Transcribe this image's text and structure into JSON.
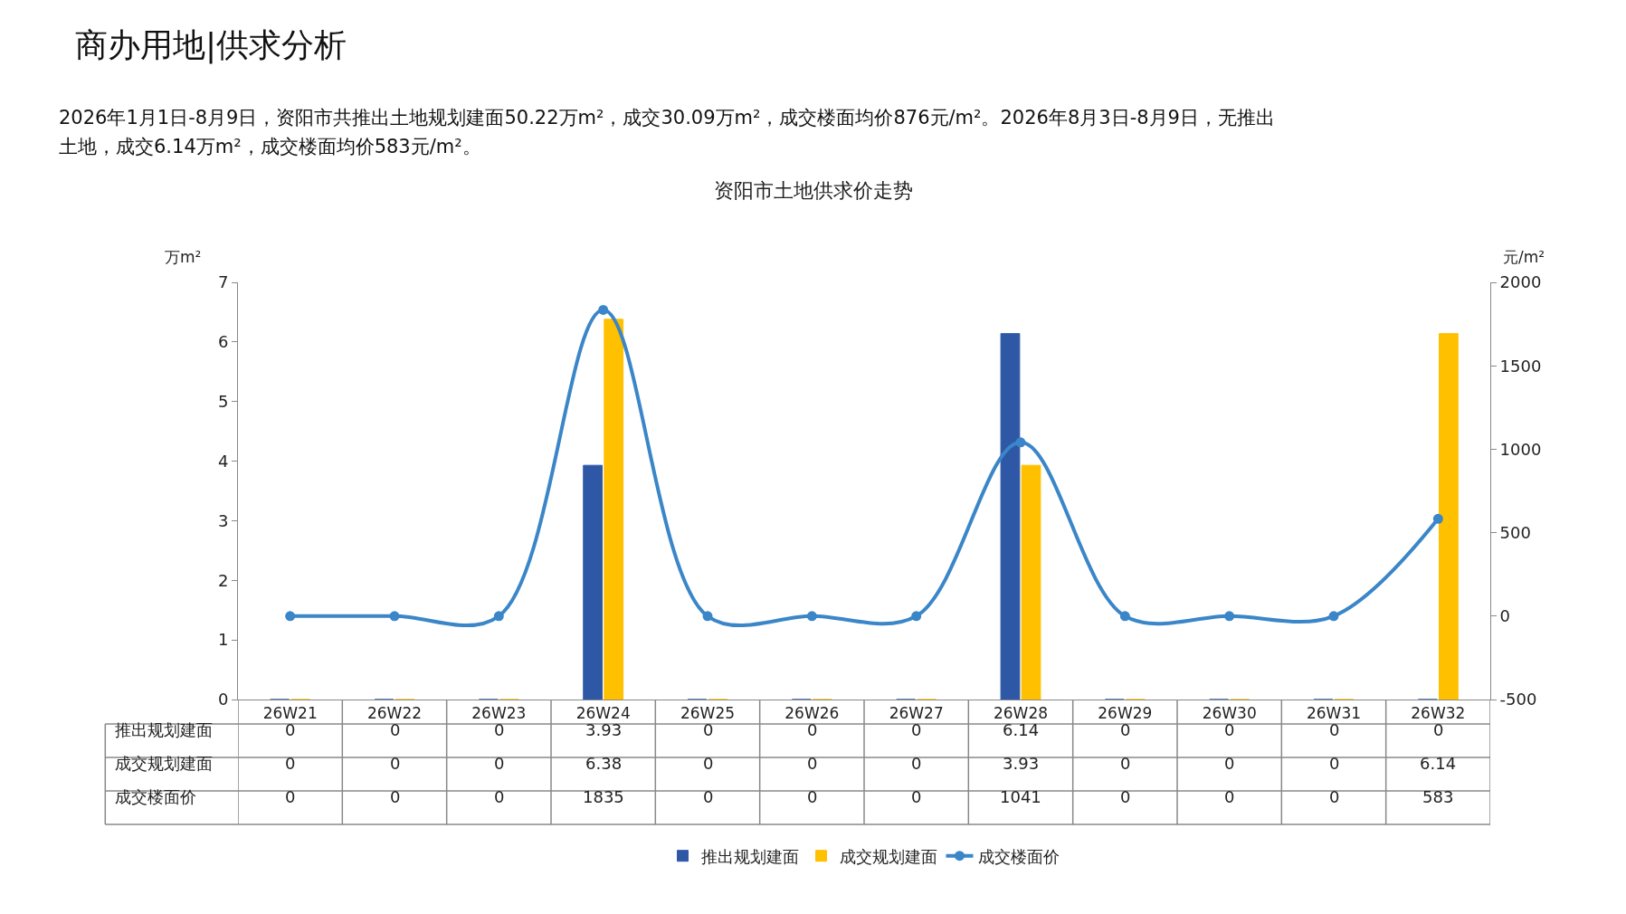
{
  "chart_data": {
    "type": "bar",
    "title": "资阳市土地供求价走势",
    "annotations": [
      "商办用地|供求分析",
      "2026年1月1日-8月9日，资阳市共推出土地规划建面50.22万m²，成交30.09万m²，成交楼面均价876元/m²。2026年8月3日-8月9日，无推出",
      "土地，成交6.14万m²，成交楼面均价583元/m²。"
    ],
    "ylabel": "万m²",
    "y2label": "元/m²",
    "categories": [
      "26W21",
      "26W22",
      "26W23",
      "26W24",
      "26W25",
      "26W26",
      "26W27",
      "26W28",
      "26W29",
      "26W30",
      "26W31",
      "26W32"
    ],
    "series": [
      {
        "name": "推出规划建面",
        "color": "#2e58a6",
        "values": [
          0,
          0,
          0,
          3.93,
          0,
          0,
          0,
          6.14,
          0,
          0,
          0,
          0
        ]
      },
      {
        "name": "成交规划建面",
        "color": "#ffc000",
        "values": [
          0,
          0,
          0,
          6.38,
          0,
          0,
          0,
          3.93,
          0,
          0,
          0,
          6.14
        ]
      },
      {
        "name": "成交楼面价",
        "type": "line",
        "axis": "y2",
        "color": "#3a86c8",
        "marker": "circle",
        "values": [
          0,
          0,
          0,
          1835,
          0,
          0,
          0,
          1041,
          0,
          0,
          0,
          583
        ]
      }
    ],
    "ylim": [
      0,
      7
    ],
    "yticks": [
      0,
      1,
      2,
      3,
      4,
      5,
      6,
      7
    ],
    "y2lim": [
      -500,
      2000
    ],
    "y2ticks": [
      -500,
      0,
      500,
      1000,
      1500,
      2000
    ],
    "data_labels": true,
    "grid": false,
    "legend": "bottom"
  }
}
